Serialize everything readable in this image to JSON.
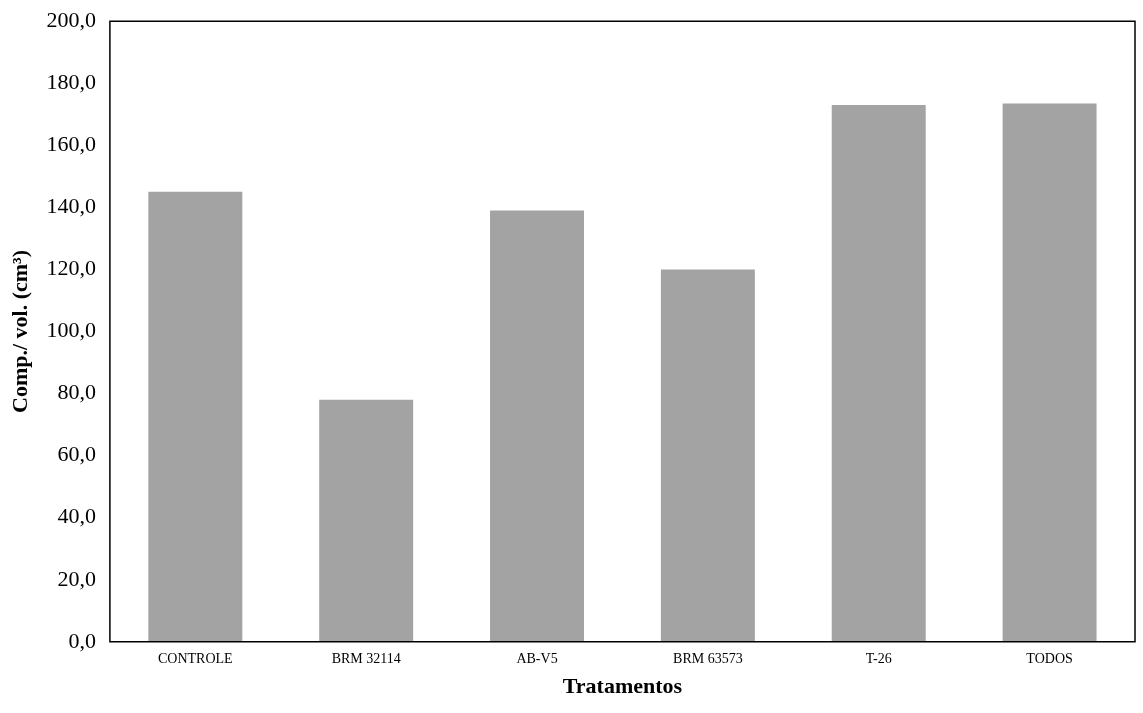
{
  "chart_data": {
    "type": "bar",
    "xlabel": "Tratamentos",
    "ylabel": "Comp./ vol. (cm³)",
    "categories": [
      "CONTROLE",
      "BRM 32114",
      "AB-V5",
      "BRM 63573",
      "T-26",
      "TODOS"
    ],
    "values": [
      145,
      78,
      139,
      120,
      173,
      173.5
    ],
    "color": "#a3a3a3",
    "ylim": [
      0,
      200
    ],
    "yticks": [
      {
        "value": 0,
        "label": "0,0"
      },
      {
        "value": 20,
        "label": "20,0"
      },
      {
        "value": 40,
        "label": "40,0"
      },
      {
        "value": 60,
        "label": "60,0"
      },
      {
        "value": 80,
        "label": "80,0"
      },
      {
        "value": 100,
        "label": "100,0"
      },
      {
        "value": 120,
        "label": "120,0"
      },
      {
        "value": 140,
        "label": "140,0"
      },
      {
        "value": 160,
        "label": "160,0"
      },
      {
        "value": 180,
        "label": "180,0"
      },
      {
        "value": 200,
        "label": "200,0"
      }
    ],
    "grid": false,
    "legend": false
  }
}
